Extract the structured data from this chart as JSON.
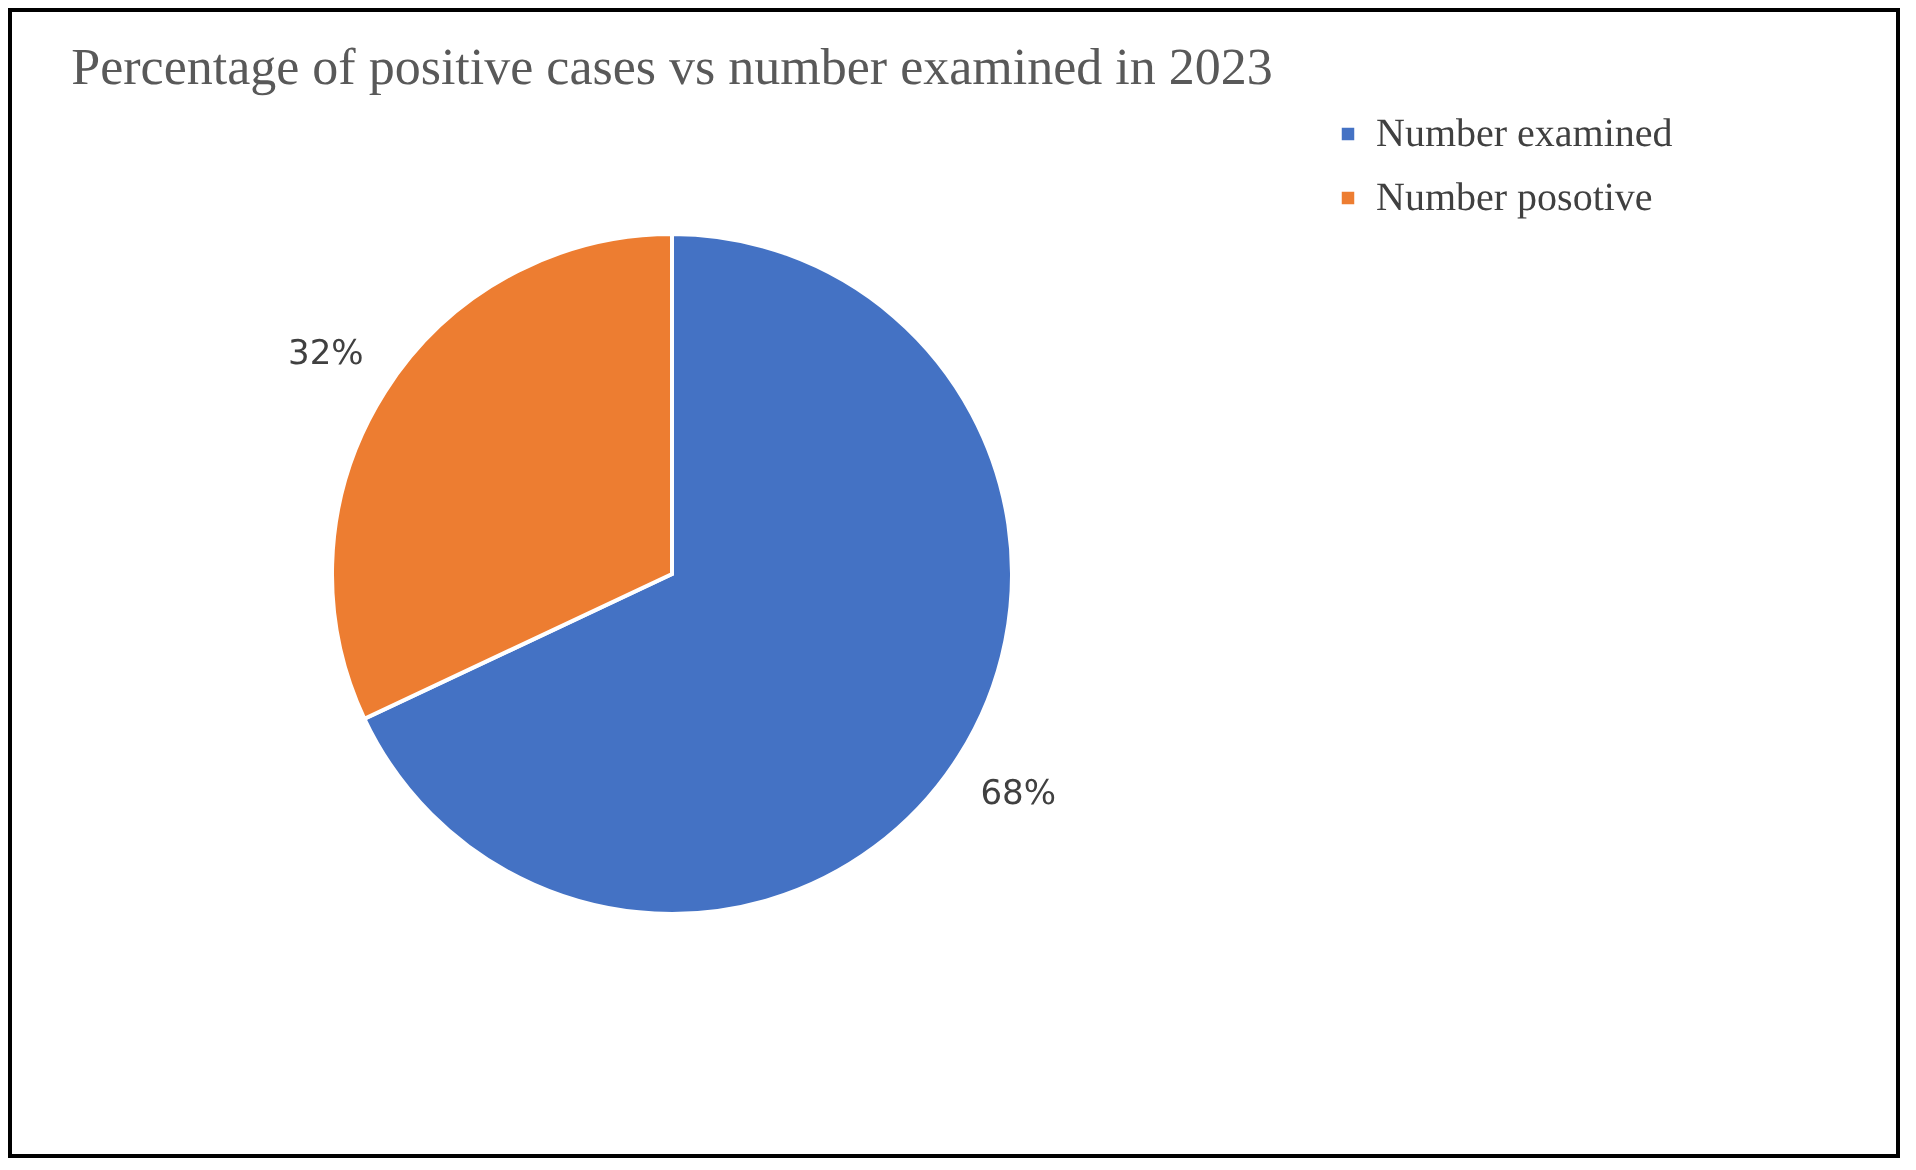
{
  "chart_data": {
    "type": "pie",
    "title": "Percentage of positive cases vs number examined in 2023",
    "categories": [
      "Number examined",
      "Number posotive"
    ],
    "values": [
      68,
      32
    ],
    "colors": [
      "#4472c4",
      "#ed7d31"
    ],
    "value_labels": [
      "68%",
      "32%"
    ],
    "legend": "right"
  }
}
